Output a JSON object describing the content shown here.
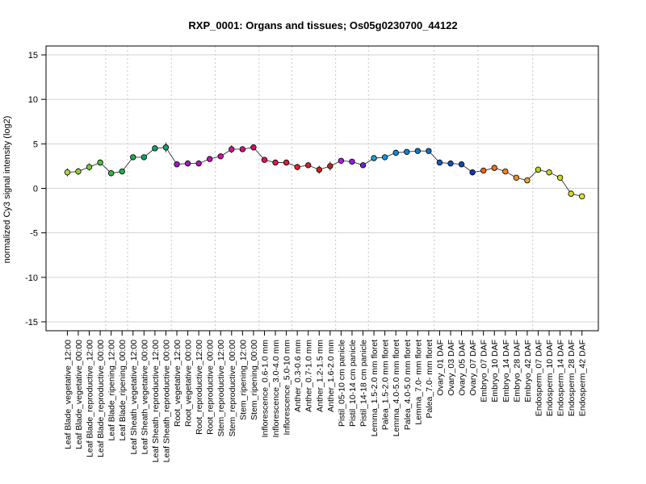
{
  "chart_data": {
    "type": "line",
    "title": "RXP_0001: Organs and tissues; Os05g0230700_44122",
    "xlabel": "",
    "ylabel": "normalized Cy3 signal intensity (log2)",
    "ylim": [
      -16,
      16
    ],
    "yticks": [
      -15,
      -10,
      -5,
      0,
      5,
      10,
      15
    ],
    "grid": true,
    "categories": [
      "Leaf Blade_vegetative_12:00",
      "Leaf Blade_vegetative_00:00",
      "Leaf Blade_reproductive_12:00",
      "Leaf Blade_reproductive_00:00",
      "Leaf Blade_ripening_12:00",
      "Leaf Blade_ripening_00:00",
      "Leaf Sheath_vegetative_12:00",
      "Leaf Sheath_vegetative_00:00",
      "Leaf Sheath_reproductive_12:00",
      "Leaf Sheath_reproductive_00:00",
      "Root_vegetative_12:00",
      "Root_vegetative_00:00",
      "Root_reproductive_12:00",
      "Root_reproductive_00:00",
      "Stem_reproductive_12:00",
      "Stem_reproductive_00:00",
      "Stem_ripening_12:00",
      "Stem_ripening_00:00",
      "Inflorescence_0.6-1.0 mm",
      "Inflorescence_3.0-4.0 mm",
      "Inflorescence_5.0-10 mm",
      "Anther_0.3-0.6 mm",
      "Anther_0.7-1.0 mm",
      "Anther_1.2-1.5 mm",
      "Anther_1.6-2.0 mm",
      "Pistil_05-10 cm panicle",
      "Pistil_10-14 cm panicle",
      "Pistil_14-18 cm panicle",
      "Lemma_1.5-2.0 mm floret",
      "Palea_1.5-2.0 mm floret",
      "Lemma_4.0-5.0 mm floret",
      "Palea_4.0-5.0 mm floret",
      "Lemma_7.0- mm floret",
      "Palea_7.0- mm floret",
      "Ovary_01 DAF",
      "Ovary_03 DAF",
      "Ovary_05 DAF",
      "Ovary_07 DAF",
      "Embryo_07 DAF",
      "Embryo_10 DAF",
      "Embryo_14 DAF",
      "Embryo_28 DAF",
      "Embryo_42 DAF",
      "Endosperm_07 DAF",
      "Endosperm_10 DAF",
      "Endosperm_14 DAF",
      "Endosperm_28 DAF",
      "Endosperm_42 DAF"
    ],
    "values": [
      1.8,
      1.9,
      2.4,
      2.9,
      1.7,
      1.9,
      3.5,
      3.5,
      4.5,
      4.6,
      2.7,
      2.8,
      2.8,
      3.3,
      3.6,
      4.4,
      4.4,
      4.6,
      3.2,
      2.9,
      2.9,
      2.4,
      2.6,
      2.1,
      2.5,
      3.1,
      3.0,
      2.6,
      3.4,
      3.5,
      4.0,
      4.1,
      4.2,
      4.2,
      2.9,
      2.8,
      2.7,
      1.8,
      2.0,
      2.3,
      1.9,
      1.2,
      0.9,
      2.1,
      1.8,
      1.2,
      -0.6,
      -0.9
    ],
    "errors": [
      0.45,
      0.4,
      0.4,
      0.35,
      0.2,
      0.3,
      0.25,
      0.2,
      0.25,
      0.55,
      0.2,
      0.15,
      0.2,
      0.2,
      0.3,
      0.45,
      0.25,
      0.2,
      0.2,
      0.15,
      0.15,
      0.35,
      0.3,
      0.45,
      0.5,
      0.2,
      0.2,
      0.25,
      0.2,
      0.3,
      0.2,
      0.2,
      0.25,
      0.25,
      0.2,
      0.2,
      0.2,
      0.35,
      0.2,
      0.2,
      0.3,
      0.2,
      0.2,
      0.2,
      0.35,
      0.2,
      0.35,
      0.3
    ],
    "point_colors": [
      "#a8d848",
      "#8ed044",
      "#72c842",
      "#54c03e",
      "#38b83c",
      "#22b040",
      "#16a852",
      "#0ea464",
      "#10a272",
      "#14a07e",
      "#9818cc",
      "#a616c4",
      "#b214bc",
      "#c012b0",
      "#cc10a2",
      "#d40e92",
      "#da0c80",
      "#de0a6c",
      "#e01454",
      "#e0184a",
      "#e41c3e",
      "#e6202e",
      "#d42228",
      "#c62424",
      "#ba2626",
      "#b01ae4",
      "#8c1ee0",
      "#6c22dc",
      "#10a4d8",
      "#1298dc",
      "#108cd6",
      "#1082d2",
      "#0e76cc",
      "#0e6cc8",
      "#0e5ec4",
      "#0c52c0",
      "#0c46bc",
      "#0c3ab8",
      "#f06010",
      "#f07018",
      "#f08020",
      "#f09028",
      "#f0a030",
      "#c0d018",
      "#c8d41c",
      "#d0d820",
      "#d8dc24",
      "#e0e028"
    ]
  }
}
